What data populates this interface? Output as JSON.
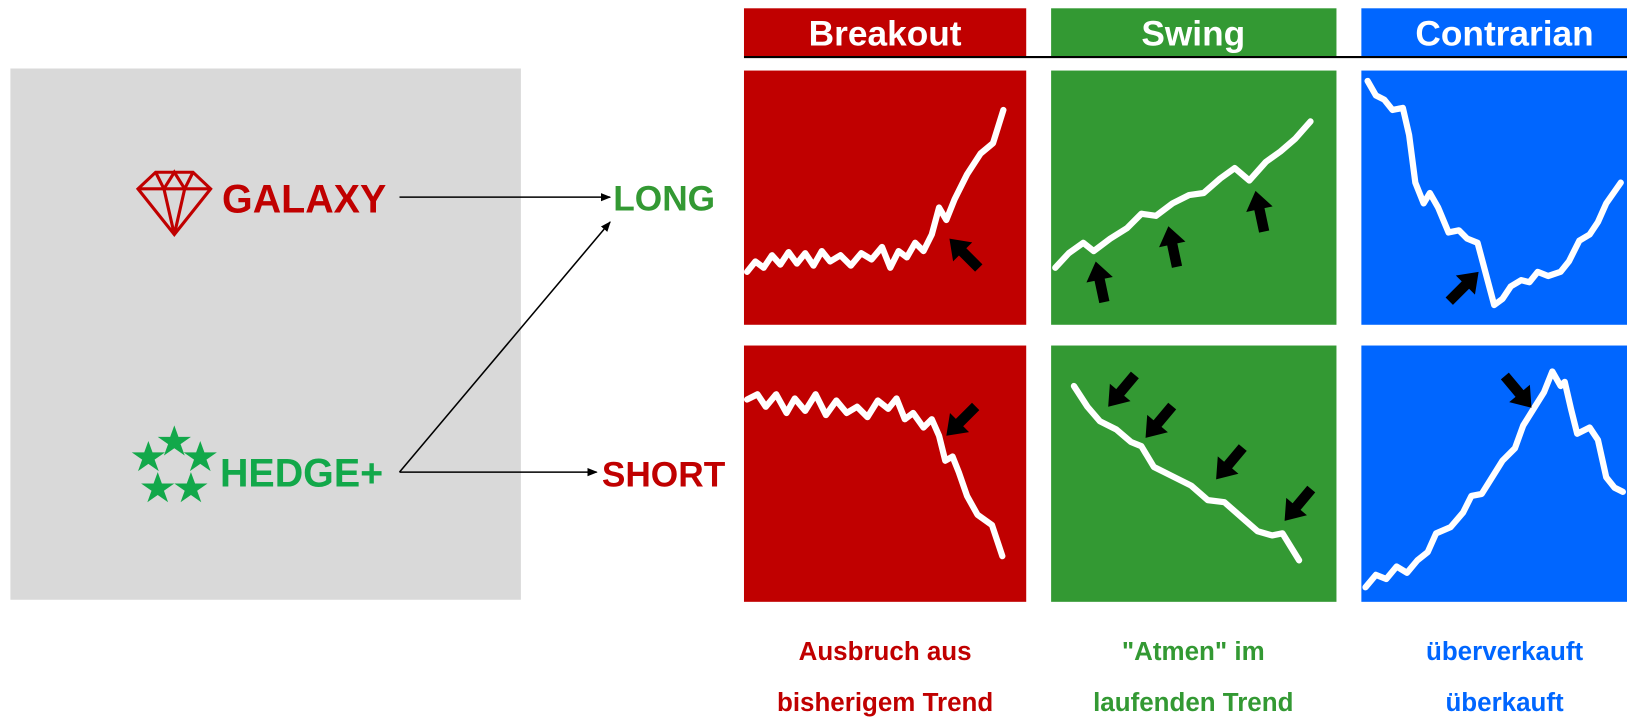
{
  "products": [
    {
      "name": "GALAXY"
    },
    {
      "name": "HEDGE+"
    }
  ],
  "directions": [
    "LONG",
    "SHORT"
  ],
  "strategies": [
    {
      "title": "Breakout",
      "caption": [
        "Ausbruch aus",
        "bisherigem Trend"
      ]
    },
    {
      "title": "Swing",
      "caption": [
        "\"Atmen\" im",
        "laufenden Trend"
      ]
    },
    {
      "title": "Contrarian",
      "caption": [
        "überverkauft",
        "überkauft"
      ]
    }
  ]
}
